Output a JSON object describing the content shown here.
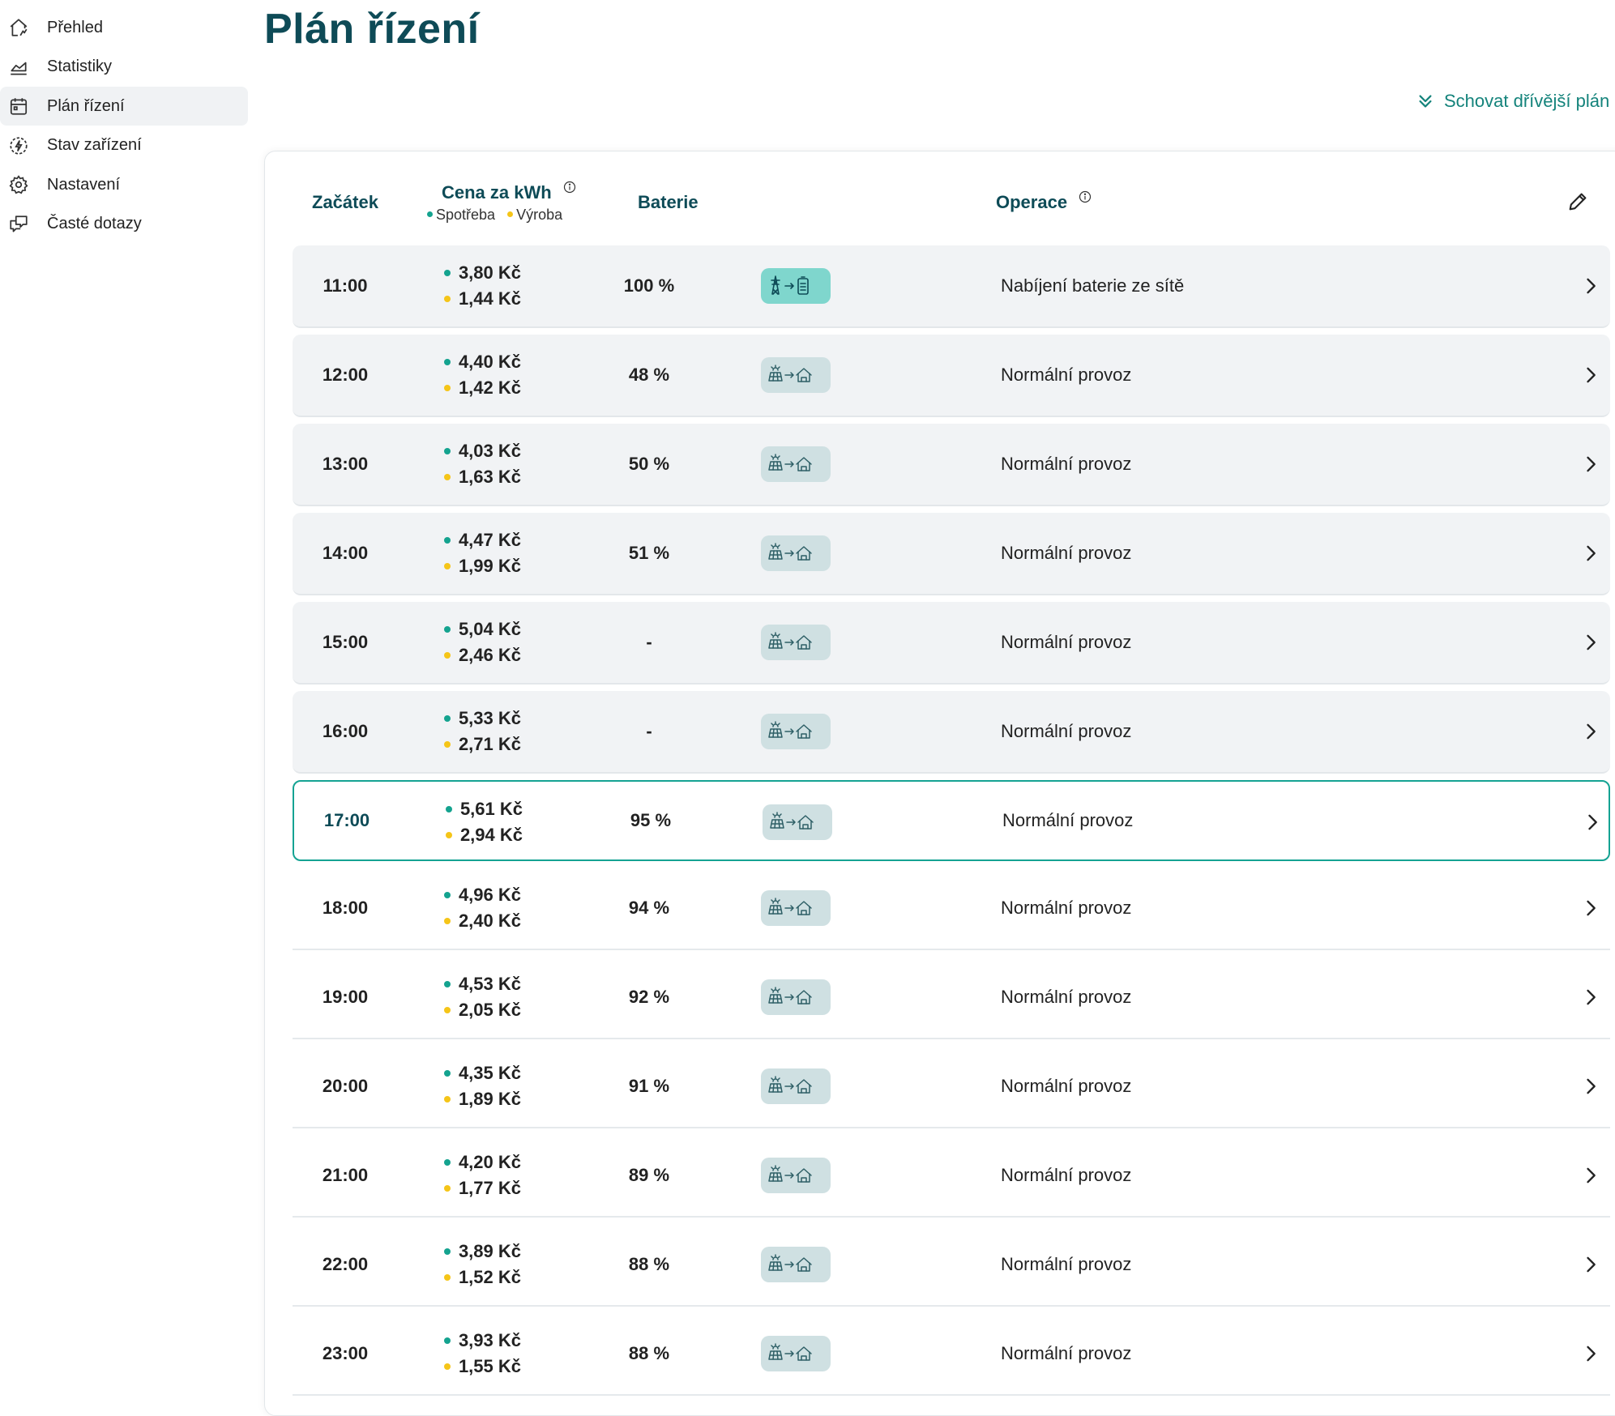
{
  "sidebar": {
    "items": [
      {
        "label": "Přehled",
        "icon": "home-icon",
        "active": false
      },
      {
        "label": "Statistiky",
        "icon": "chart-icon",
        "active": false
      },
      {
        "label": "Plán řízení",
        "icon": "calendar-icon",
        "active": true
      },
      {
        "label": "Stav zařízení",
        "icon": "device-status-icon",
        "active": false
      },
      {
        "label": "Nastavení",
        "icon": "gear-icon",
        "active": false
      },
      {
        "label": "Časté dotazy",
        "icon": "faq-icon",
        "active": false
      }
    ]
  },
  "page": {
    "title": "Plán řízení",
    "hide_link": "Schovat dřívější plán"
  },
  "table": {
    "headers": {
      "start": "Začátek",
      "price": "Cena za kWh",
      "price_consumption": "Spotřeba",
      "price_production": "Výroba",
      "battery": "Baterie",
      "operation": "Operace"
    },
    "colors": {
      "consumption_dot": "#14a38f",
      "production_dot": "#f5c518",
      "accent": "#0e4b57",
      "current_border": "#15a393"
    },
    "rows": [
      {
        "time": "11:00",
        "buy": "3,80 Kč",
        "sell": "1,44 Kč",
        "battery": "100 %",
        "mode": "charge",
        "icon": "grid-to-battery-icon",
        "operation": "Nabíjení baterie ze sítě",
        "state": "past"
      },
      {
        "time": "12:00",
        "buy": "4,40 Kč",
        "sell": "1,42 Kč",
        "battery": "48 %",
        "mode": "normal",
        "icon": "solar-to-home-icon",
        "operation": "Normální provoz",
        "state": "past"
      },
      {
        "time": "13:00",
        "buy": "4,03 Kč",
        "sell": "1,63 Kč",
        "battery": "50 %",
        "mode": "normal",
        "icon": "solar-to-home-icon",
        "operation": "Normální provoz",
        "state": "past"
      },
      {
        "time": "14:00",
        "buy": "4,47 Kč",
        "sell": "1,99 Kč",
        "battery": "51 %",
        "mode": "normal",
        "icon": "solar-to-home-icon",
        "operation": "Normální provoz",
        "state": "past"
      },
      {
        "time": "15:00",
        "buy": "5,04 Kč",
        "sell": "2,46 Kč",
        "battery": "-",
        "mode": "normal",
        "icon": "solar-to-home-icon",
        "operation": "Normální provoz",
        "state": "past"
      },
      {
        "time": "16:00",
        "buy": "5,33 Kč",
        "sell": "2,71 Kč",
        "battery": "-",
        "mode": "normal",
        "icon": "solar-to-home-icon",
        "operation": "Normální provoz",
        "state": "past"
      },
      {
        "time": "17:00",
        "buy": "5,61 Kč",
        "sell": "2,94 Kč",
        "battery": "95 %",
        "mode": "normal",
        "icon": "solar-to-home-icon",
        "operation": "Normální provoz",
        "state": "current"
      },
      {
        "time": "18:00",
        "buy": "4,96 Kč",
        "sell": "2,40 Kč",
        "battery": "94 %",
        "mode": "normal",
        "icon": "solar-to-home-icon",
        "operation": "Normální provoz",
        "state": "future"
      },
      {
        "time": "19:00",
        "buy": "4,53 Kč",
        "sell": "2,05 Kč",
        "battery": "92 %",
        "mode": "normal",
        "icon": "solar-to-home-icon",
        "operation": "Normální provoz",
        "state": "future"
      },
      {
        "time": "20:00",
        "buy": "4,35 Kč",
        "sell": "1,89 Kč",
        "battery": "91 %",
        "mode": "normal",
        "icon": "solar-to-home-icon",
        "operation": "Normální provoz",
        "state": "future"
      },
      {
        "time": "21:00",
        "buy": "4,20 Kč",
        "sell": "1,77 Kč",
        "battery": "89 %",
        "mode": "normal",
        "icon": "solar-to-home-icon",
        "operation": "Normální provoz",
        "state": "future"
      },
      {
        "time": "22:00",
        "buy": "3,89 Kč",
        "sell": "1,52 Kč",
        "battery": "88 %",
        "mode": "normal",
        "icon": "solar-to-home-icon",
        "operation": "Normální provoz",
        "state": "future"
      },
      {
        "time": "23:00",
        "buy": "3,93 Kč",
        "sell": "1,55 Kč",
        "battery": "88 %",
        "mode": "normal",
        "icon": "solar-to-home-icon",
        "operation": "Normální provoz",
        "state": "future"
      }
    ]
  }
}
